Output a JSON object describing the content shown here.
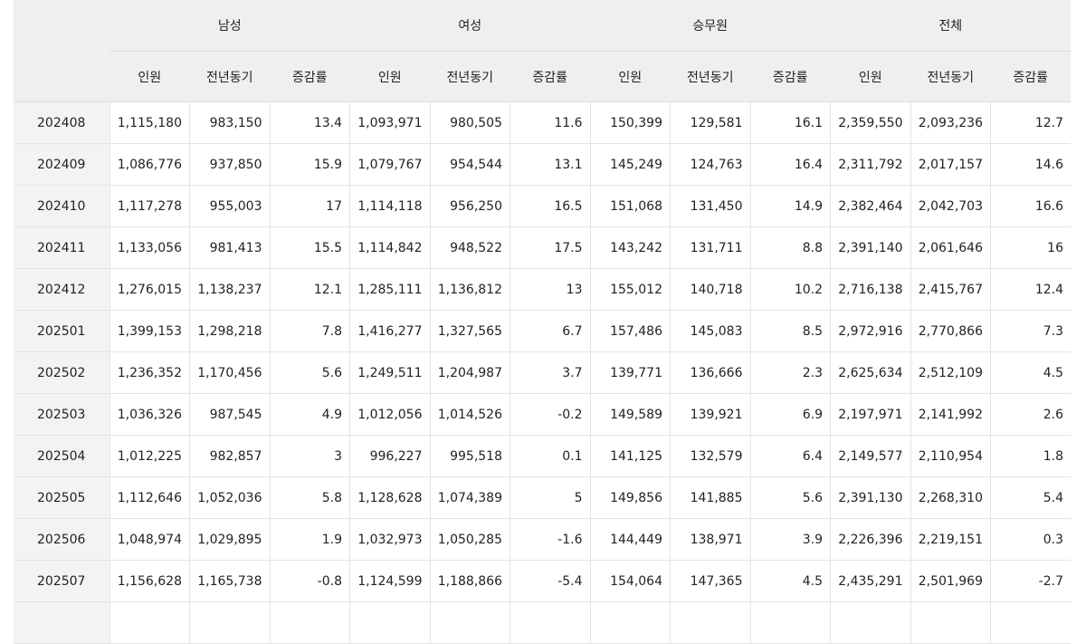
{
  "header": {
    "groups": [
      {
        "name": "남성",
        "columns": [
          "인원",
          "전년동기",
          "증감률"
        ]
      },
      {
        "name": "여성",
        "columns": [
          "인원",
          "전년동기",
          "증감률"
        ]
      },
      {
        "name": "승무원",
        "columns": [
          "인원",
          "전년동기",
          "증감률"
        ]
      },
      {
        "name": "전체",
        "columns": [
          "인원",
          "전년동기",
          "증감률"
        ]
      }
    ]
  },
  "table": {
    "rows": [
      {
        "month": "202408",
        "cells": [
          "1,115,180",
          "983,150",
          "13.4",
          "1,093,971",
          "980,505",
          "11.6",
          "150,399",
          "129,581",
          "16.1",
          "2,359,550",
          "2,093,236",
          "12.7"
        ]
      },
      {
        "month": "202409",
        "cells": [
          "1,086,776",
          "937,850",
          "15.9",
          "1,079,767",
          "954,544",
          "13.1",
          "145,249",
          "124,763",
          "16.4",
          "2,311,792",
          "2,017,157",
          "14.6"
        ]
      },
      {
        "month": "202410",
        "cells": [
          "1,117,278",
          "955,003",
          "17",
          "1,114,118",
          "956,250",
          "16.5",
          "151,068",
          "131,450",
          "14.9",
          "2,382,464",
          "2,042,703",
          "16.6"
        ]
      },
      {
        "month": "202411",
        "cells": [
          "1,133,056",
          "981,413",
          "15.5",
          "1,114,842",
          "948,522",
          "17.5",
          "143,242",
          "131,711",
          "8.8",
          "2,391,140",
          "2,061,646",
          "16"
        ]
      },
      {
        "month": "202412",
        "cells": [
          "1,276,015",
          "1,138,237",
          "12.1",
          "1,285,111",
          "1,136,812",
          "13",
          "155,012",
          "140,718",
          "10.2",
          "2,716,138",
          "2,415,767",
          "12.4"
        ]
      },
      {
        "month": "202501",
        "cells": [
          "1,399,153",
          "1,298,218",
          "7.8",
          "1,416,277",
          "1,327,565",
          "6.7",
          "157,486",
          "145,083",
          "8.5",
          "2,972,916",
          "2,770,866",
          "7.3"
        ]
      },
      {
        "month": "202502",
        "cells": [
          "1,236,352",
          "1,170,456",
          "5.6",
          "1,249,511",
          "1,204,987",
          "3.7",
          "139,771",
          "136,666",
          "2.3",
          "2,625,634",
          "2,512,109",
          "4.5"
        ]
      },
      {
        "month": "202503",
        "cells": [
          "1,036,326",
          "987,545",
          "4.9",
          "1,012,056",
          "1,014,526",
          "-0.2",
          "149,589",
          "139,921",
          "6.9",
          "2,197,971",
          "2,141,992",
          "2.6"
        ]
      },
      {
        "month": "202504",
        "cells": [
          "1,012,225",
          "982,857",
          "3",
          "996,227",
          "995,518",
          "0.1",
          "141,125",
          "132,579",
          "6.4",
          "2,149,577",
          "2,110,954",
          "1.8"
        ]
      },
      {
        "month": "202505",
        "cells": [
          "1,112,646",
          "1,052,036",
          "5.8",
          "1,128,628",
          "1,074,389",
          "5",
          "149,856",
          "141,885",
          "5.6",
          "2,391,130",
          "2,268,310",
          "5.4"
        ]
      },
      {
        "month": "202506",
        "cells": [
          "1,048,974",
          "1,029,895",
          "1.9",
          "1,032,973",
          "1,050,285",
          "-1.6",
          "144,449",
          "138,971",
          "3.9",
          "2,226,396",
          "2,219,151",
          "0.3"
        ]
      },
      {
        "month": "202507",
        "cells": [
          "1,156,628",
          "1,165,738",
          "-0.8",
          "1,124,599",
          "1,188,866",
          "-5.4",
          "154,064",
          "147,365",
          "4.5",
          "2,435,291",
          "2,501,969",
          "-2.7"
        ]
      }
    ]
  }
}
